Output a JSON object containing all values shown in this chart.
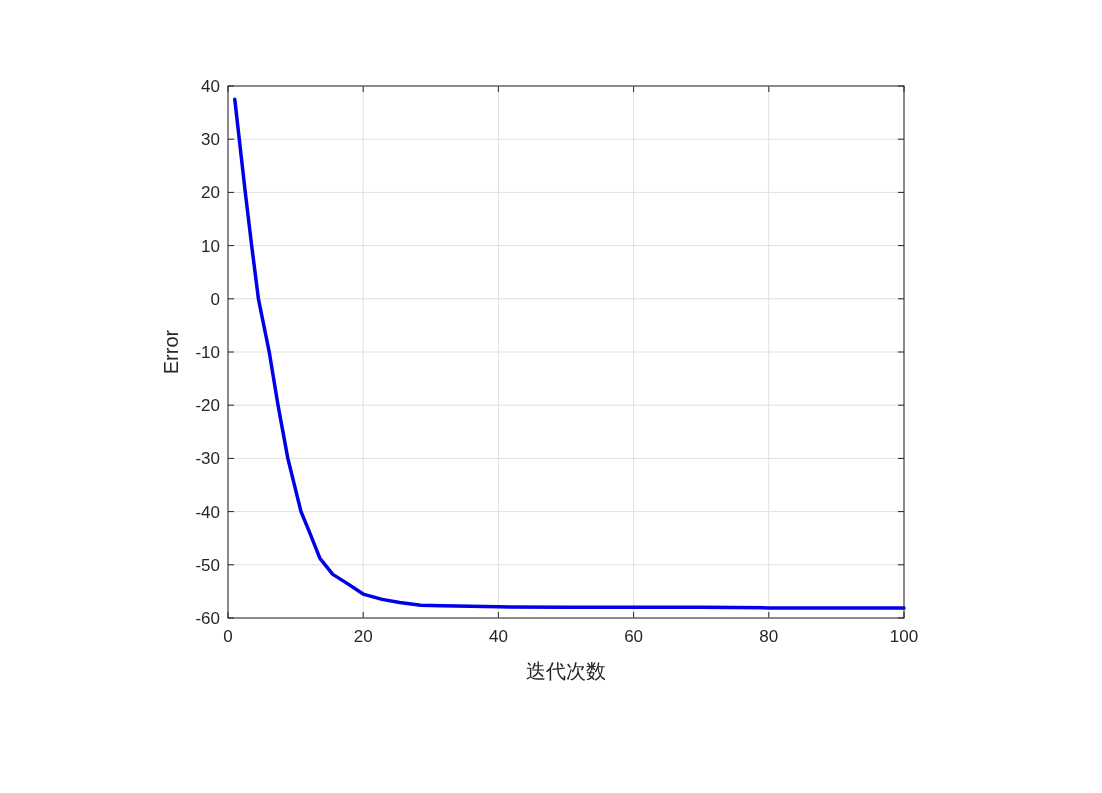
{
  "chart_data": {
    "type": "line",
    "xlabel": "迭代次数",
    "ylabel": "Error",
    "xlim": [
      0,
      100
    ],
    "ylim": [
      -60,
      40
    ],
    "xticks": [
      0,
      20,
      40,
      60,
      80,
      100
    ],
    "yticks": [
      -60,
      -50,
      -40,
      -30,
      -20,
      -10,
      0,
      10,
      20,
      30,
      40
    ],
    "grid": true,
    "line_style": "solid",
    "marker": "none",
    "series": [
      {
        "color": "#0000e6",
        "x": [
          1,
          2.55,
          3.5,
          4.5,
          6.1,
          7.4,
          8.85,
          10.8,
          12.1,
          13.6,
          15.5,
          17.5,
          20,
          22.8,
          25.4,
          28.5,
          31.6,
          40,
          50,
          60,
          70,
          80,
          90,
          100
        ],
        "values": [
          37.5,
          20.1,
          10,
          0,
          -10,
          -20,
          -30,
          -40,
          -44,
          -48.8,
          -51.8,
          -53.4,
          -55.5,
          -56.5,
          -57.1,
          -57.6,
          -57.7,
          -57.9,
          -58,
          -58,
          -58,
          -58.1,
          -58.1,
          -58.1
        ]
      }
    ]
  }
}
